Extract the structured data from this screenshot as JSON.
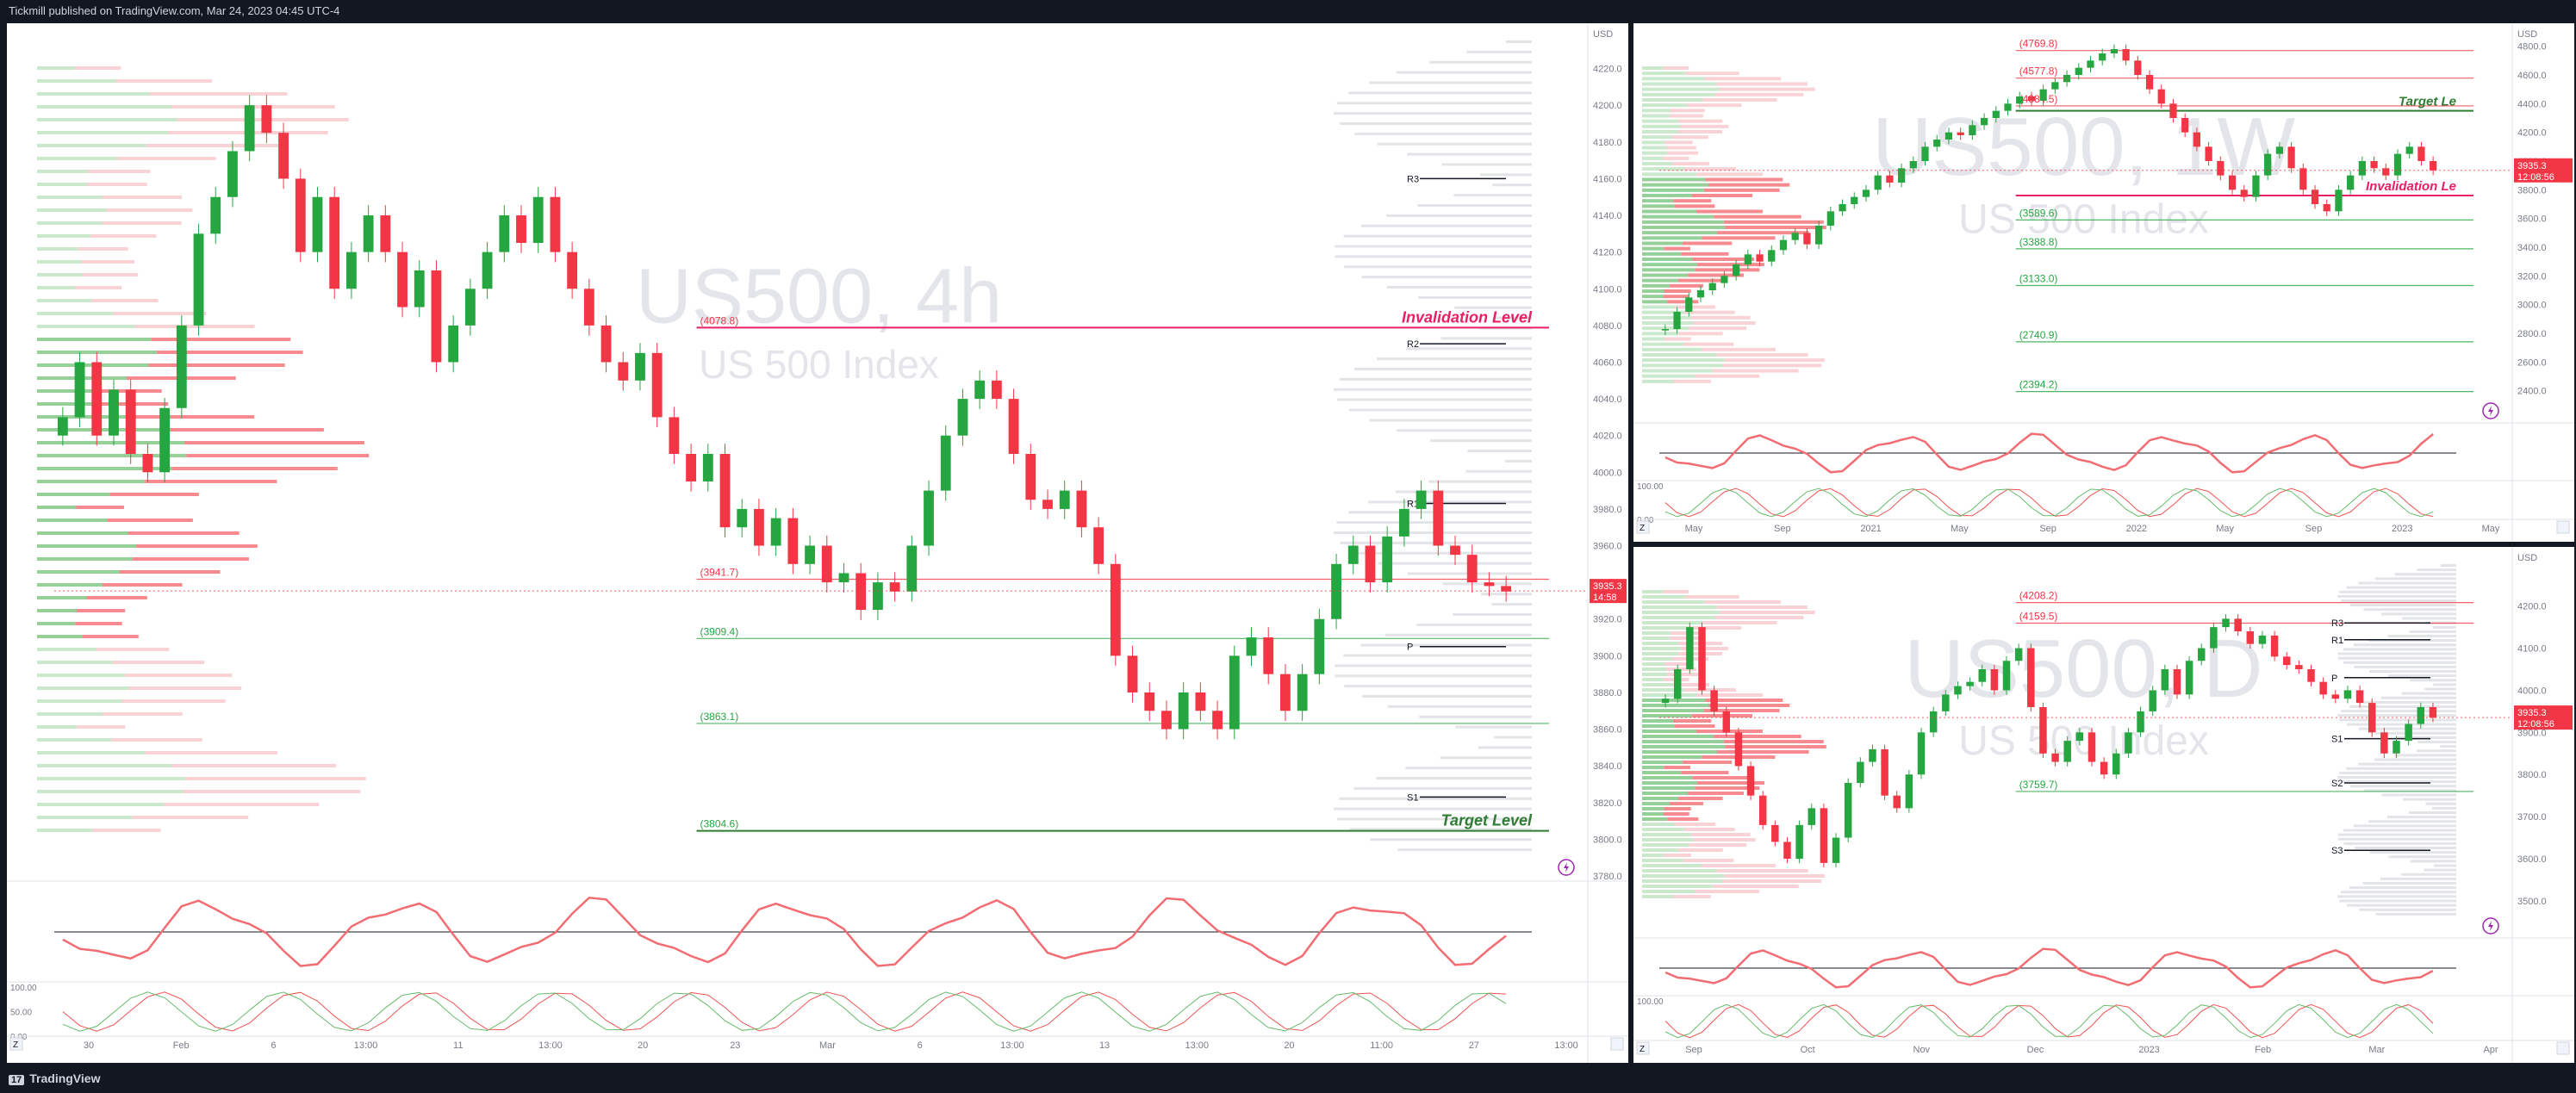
{
  "header": {
    "published": "Tickmill published on TradingView.com, Mar 24, 2023 04:45 UTC-4"
  },
  "footer": {
    "brand": "TradingView",
    "brand_mark": "17"
  },
  "colors": {
    "up": "#26a641",
    "down": "#f23645",
    "background": "#ffffff",
    "chrome": "#131722",
    "invalidation": "#e91e63",
    "target": "#2e7d32"
  },
  "icons": [
    "tradingview-logo-icon",
    "lightning-icon",
    "z-axis-icon",
    "auto-scale-icon"
  ],
  "chart_data": [
    {
      "type": "line",
      "watermark": "US500, 4h",
      "sub_watermark": "US 500 Index",
      "ylim": [
        3780,
        4240
      ],
      "y_axis_label": "USD",
      "y_ticks": [
        "4220.0",
        "4200.0",
        "4180.0",
        "4160.0",
        "4140.0",
        "4120.0",
        "4100.0",
        "4080.0",
        "4060.0",
        "4040.0",
        "4020.0",
        "4000.0",
        "3980.0",
        "3960.0",
        "3940.0",
        "3920.0",
        "3900.0",
        "3880.0",
        "3860.0",
        "3840.0",
        "3820.0",
        "3800.0",
        "3780.0"
      ],
      "x_ticks": [
        "30",
        "Feb",
        "6",
        "13:00",
        "11",
        "13:00",
        "20",
        "23",
        "Mar",
        "6",
        "13:00",
        "13",
        "13:00",
        "20",
        "11:00",
        "27",
        "13:00"
      ],
      "last_price": "3935.3",
      "countdown": "14:58",
      "annotations": [
        {
          "text": "Invalidation Level",
          "price": 4078.8
        },
        {
          "text": "Target Level",
          "price": 3804.6
        }
      ],
      "levels": [
        {
          "label": "(4078.8)",
          "price": 4078.8
        },
        {
          "label": "(3941.7)",
          "price": 3941.7
        },
        {
          "label": "(3909.4)",
          "price": 3909.4
        },
        {
          "label": "(3863.1)",
          "price": 3863.1
        },
        {
          "label": "(3804.6)",
          "price": 3804.6
        }
      ],
      "pivots": [
        {
          "label": "R3",
          "price": 4160
        },
        {
          "label": "R2",
          "price": 4070
        },
        {
          "label": "R1",
          "price": 3983
        },
        {
          "label": "P",
          "price": 3905
        },
        {
          "label": "S1",
          "price": 3823
        }
      ],
      "close": [
        4030,
        4060,
        4020,
        4045,
        4010,
        4000,
        4035,
        4080,
        4130,
        4150,
        4175,
        4200,
        4185,
        4160,
        4120,
        4150,
        4100,
        4120,
        4140,
        4120,
        4090,
        4110,
        4060,
        4080,
        4100,
        4120,
        4140,
        4125,
        4150,
        4120,
        4100,
        4080,
        4060,
        4050,
        4065,
        4030,
        4010,
        3995,
        4010,
        3970,
        3980,
        3960,
        3975,
        3950,
        3960,
        3940,
        3945,
        3925,
        3940,
        3935,
        3960,
        3990,
        4020,
        4040,
        4050,
        4040,
        4010,
        3985,
        3980,
        3990,
        3970,
        3950,
        3900,
        3880,
        3870,
        3860,
        3880,
        3870,
        3860,
        3900,
        3910,
        3890,
        3870,
        3890,
        3920,
        3950,
        3960,
        3940,
        3965,
        3980,
        3990,
        3960,
        3955,
        3940,
        3938,
        3935
      ],
      "oscillators": {
        "rsi_levels": [],
        "stoch_ticks": [
          "100.00",
          "50.00",
          "0.00"
        ]
      }
    },
    {
      "type": "line",
      "watermark": "US500, 1W",
      "sub_watermark": "US 500 Index",
      "ylim": [
        2200,
        4900
      ],
      "y_axis_label": "USD",
      "y_ticks": [
        "4800.0",
        "4600.0",
        "4400.0",
        "4200.0",
        "4000.0",
        "3800.0",
        "3600.0",
        "3400.0",
        "3200.0",
        "3000.0",
        "2800.0",
        "2600.0",
        "2400.0"
      ],
      "x_ticks": [
        "May",
        "Sep",
        "2021",
        "May",
        "Sep",
        "2022",
        "May",
        "Sep",
        "2023",
        "May"
      ],
      "last_price": "3935.3",
      "countdown": "12:08:56",
      "annotations": [
        {
          "text": "Target Le",
          "price": 4350
        },
        {
          "text": "Invalidation Le",
          "price": 3760
        }
      ],
      "levels": [
        {
          "label": "(4769.8)",
          "price": 4769.8
        },
        {
          "label": "(4577.8)",
          "price": 4577.8
        },
        {
          "label": "(4384.5)",
          "price": 4384.5
        },
        {
          "label": "(3589.6)",
          "price": 3589.6
        },
        {
          "label": "(3388.8)",
          "price": 3388.8
        },
        {
          "label": "(3133.0)",
          "price": 3133.0
        },
        {
          "label": "(2740.9)",
          "price": 2740.9
        },
        {
          "label": "(2394.2)",
          "price": 2394.2
        }
      ],
      "close": [
        2830,
        2950,
        3050,
        3100,
        3150,
        3200,
        3280,
        3350,
        3300,
        3380,
        3450,
        3500,
        3420,
        3550,
        3650,
        3700,
        3750,
        3800,
        3900,
        3850,
        3950,
        4000,
        4100,
        4150,
        4200,
        4180,
        4250,
        4300,
        4350,
        4400,
        4450,
        4420,
        4500,
        4550,
        4600,
        4650,
        4700,
        4750,
        4780,
        4700,
        4600,
        4500,
        4400,
        4300,
        4200,
        4100,
        4000,
        3900,
        3800,
        3750,
        3900,
        4050,
        4100,
        3950,
        3800,
        3700,
        3650,
        3800,
        3900,
        4000,
        3950,
        3900,
        4050,
        4100,
        4000,
        3935
      ],
      "oscillators": {
        "stoch_ticks": [
          "100.00",
          "0.00"
        ]
      }
    },
    {
      "type": "line",
      "watermark": "US500, D",
      "sub_watermark": "US 500 Index",
      "ylim": [
        3420,
        4320
      ],
      "y_axis_label": "USD",
      "y_ticks": [
        "4200.0",
        "4100.0",
        "4000.0",
        "3900.0",
        "3800.0",
        "3700.0",
        "3600.0",
        "3500.0"
      ],
      "x_ticks": [
        "Sep",
        "Oct",
        "Nov",
        "Dec",
        "2023",
        "Feb",
        "Mar",
        "Apr"
      ],
      "last_price": "3935.3",
      "countdown": "12:08:56",
      "annotations": [],
      "levels": [
        {
          "label": "(4208.2)",
          "price": 4208.2
        },
        {
          "label": "(4159.5)",
          "price": 4159.5
        },
        {
          "label": "(3759.7)",
          "price": 3759.7
        }
      ],
      "pivots": [
        {
          "label": "R3",
          "price": 4160
        },
        {
          "label": "R1",
          "price": 4120
        },
        {
          "label": "P",
          "price": 4030
        },
        {
          "label": "S1",
          "price": 3885
        },
        {
          "label": "S2",
          "price": 3780
        },
        {
          "label": "S3",
          "price": 3620
        }
      ],
      "close": [
        3980,
        4050,
        4150,
        4000,
        3950,
        3900,
        3820,
        3750,
        3680,
        3640,
        3600,
        3680,
        3720,
        3590,
        3650,
        3780,
        3830,
        3860,
        3750,
        3720,
        3800,
        3900,
        3950,
        3990,
        4010,
        4020,
        4050,
        4000,
        4070,
        4100,
        3960,
        3850,
        3830,
        3880,
        3900,
        3830,
        3800,
        3850,
        3900,
        3950,
        4000,
        4050,
        3990,
        4070,
        4100,
        4150,
        4170,
        4140,
        4110,
        4130,
        4080,
        4060,
        4050,
        4020,
        3990,
        3980,
        4000,
        3970,
        3900,
        3850,
        3880,
        3920,
        3960,
        3935
      ],
      "oscillators": {
        "stoch_ticks": [
          "100.00"
        ]
      }
    }
  ]
}
